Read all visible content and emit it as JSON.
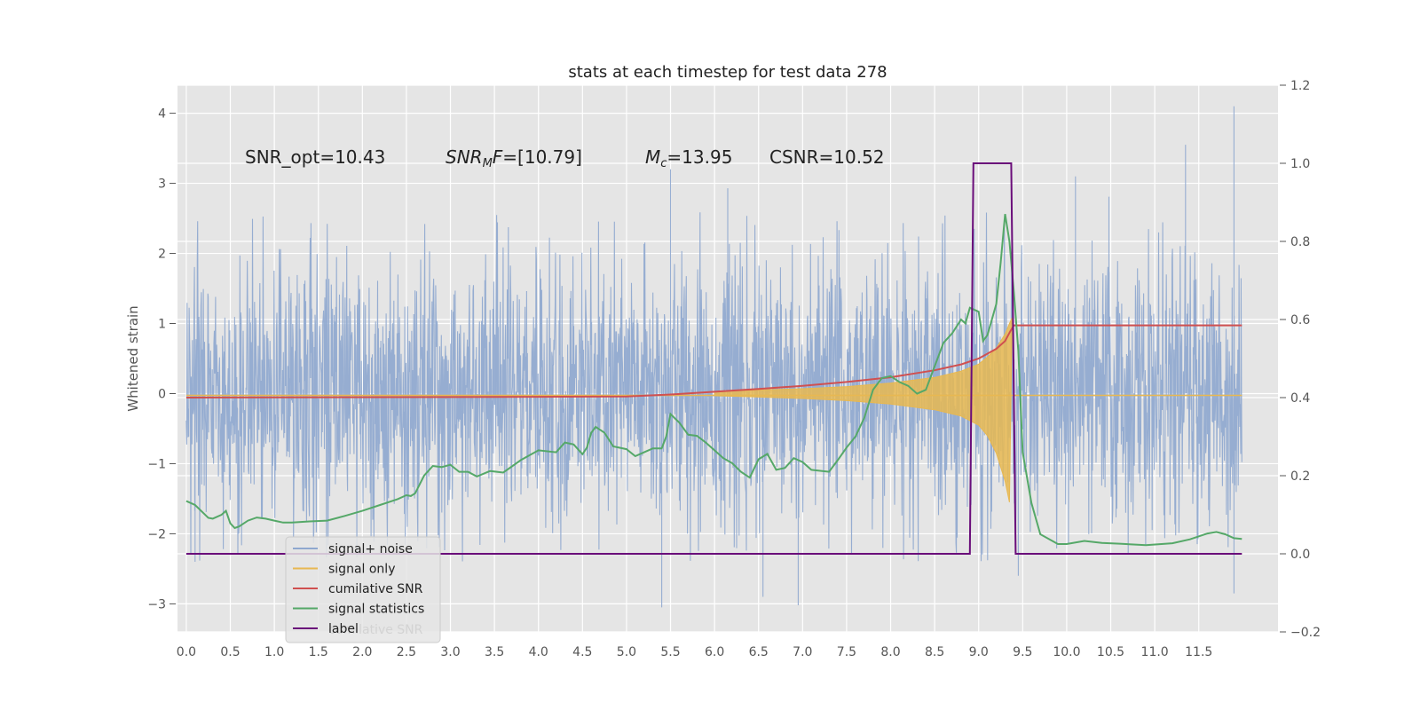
{
  "chart_data": {
    "type": "line",
    "title": "stats at each timestep for test data 278",
    "ylabel": "Whitened strain",
    "xlim": [
      -0.1,
      12.4
    ],
    "ylim": [
      -3.4,
      4.4
    ],
    "y2lim": [
      -0.2,
      1.2
    ],
    "x_ticks": [
      0.0,
      0.5,
      1.0,
      1.5,
      2.0,
      2.5,
      3.0,
      3.5,
      4.0,
      4.5,
      5.0,
      5.5,
      6.0,
      6.5,
      7.0,
      7.5,
      8.0,
      8.5,
      9.0,
      9.5,
      10.0,
      10.5,
      11.0,
      11.5
    ],
    "x_tick_labels": [
      "0.0",
      "0.5",
      "1.0",
      "1.5",
      "2.0",
      "2.5",
      "3.0",
      "3.5",
      "4.0",
      "4.5",
      "5.0",
      "5.5",
      "6.0",
      "6.5",
      "7.0",
      "7.5",
      "8.0",
      "8.5",
      "9.0",
      "9.5",
      "10.0",
      "10.5",
      "11.0",
      "11.5"
    ],
    "y_ticks": [
      4,
      3,
      2,
      1,
      0,
      -1,
      -2,
      -3
    ],
    "y_tick_labels": [
      "4",
      "3",
      "2",
      "1",
      "0",
      "−1",
      "−2",
      "−3"
    ],
    "y2_ticks": [
      1.2,
      1.0,
      0.8,
      0.6,
      0.4,
      0.2,
      0.0,
      -0.2
    ],
    "y2_tick_labels": [
      "1.2",
      "1.0",
      "0.8",
      "0.6",
      "0.4",
      "0.2",
      "0.0",
      "−0.2"
    ],
    "grid": true,
    "legend_position": "lower-left",
    "annotations": [
      "SNR_opt=10.43",
      "SNR_MF=[10.79]",
      "M_c=13.95",
      "CSNR=10.52"
    ],
    "series": [
      {
        "name": "signal+ noise",
        "axis": "left",
        "color": "#8fa8cf",
        "x_range": [
          0.0,
          11.99
        ],
        "note_values": "white noise, roughly within [-2.4, 2.6] with peaks up to 4.1 near x=11.95",
        "peaks": [
          [
            5.5,
            3.2
          ],
          [
            6.15,
            2.93
          ],
          [
            10.1,
            3.1
          ],
          [
            10.48,
            2.81
          ],
          [
            11.35,
            3.55
          ],
          [
            11.9,
            4.1
          ],
          [
            5.4,
            -3.05
          ],
          [
            6.95,
            -3.02
          ],
          [
            6.55,
            -2.9
          ],
          [
            11.9,
            -2.85
          ],
          [
            9.45,
            -2.6
          ],
          [
            0.1,
            -2.4
          ]
        ]
      },
      {
        "name": "signal only",
        "axis": "left",
        "color": "#e8b851",
        "points": [
          [
            6.0,
            0.03
          ],
          [
            6.5,
            0.05
          ],
          [
            7.0,
            0.07
          ],
          [
            7.5,
            0.1
          ],
          [
            8.0,
            0.15
          ],
          [
            8.5,
            0.23
          ],
          [
            8.8,
            0.32
          ],
          [
            9.0,
            0.42
          ],
          [
            9.1,
            0.52
          ],
          [
            9.2,
            0.65
          ],
          [
            9.3,
            0.85
          ],
          [
            9.35,
            1.0
          ],
          [
            9.38,
            1.08
          ]
        ],
        "points_negative": [
          [
            6.0,
            -0.03
          ],
          [
            6.5,
            -0.05
          ],
          [
            7.0,
            -0.07
          ],
          [
            7.5,
            -0.1
          ],
          [
            8.0,
            -0.15
          ],
          [
            8.5,
            -0.23
          ],
          [
            8.8,
            -0.32
          ],
          [
            9.0,
            -0.45
          ],
          [
            9.1,
            -0.6
          ],
          [
            9.2,
            -0.85
          ],
          [
            9.3,
            -1.25
          ],
          [
            9.35,
            -1.55
          ]
        ]
      },
      {
        "name": "cumilative SNR",
        "axis": "right",
        "color": "#d05050",
        "points": [
          [
            0.0,
            0.4
          ],
          [
            4.0,
            0.402
          ],
          [
            5.0,
            0.403
          ],
          [
            5.5,
            0.408
          ],
          [
            6.0,
            0.415
          ],
          [
            6.5,
            0.422
          ],
          [
            7.0,
            0.43
          ],
          [
            7.5,
            0.44
          ],
          [
            8.0,
            0.452
          ],
          [
            8.5,
            0.47
          ],
          [
            8.8,
            0.485
          ],
          [
            9.0,
            0.5
          ],
          [
            9.2,
            0.525
          ],
          [
            9.3,
            0.545
          ],
          [
            9.36,
            0.57
          ],
          [
            9.4,
            0.585
          ],
          [
            10.0,
            0.585
          ],
          [
            11.0,
            0.585
          ],
          [
            11.99,
            0.585
          ]
        ]
      },
      {
        "name": "signal statistics",
        "axis": "right",
        "color": "#55a868",
        "points": [
          [
            0.0,
            0.135
          ],
          [
            0.1,
            0.125
          ],
          [
            0.2,
            0.103
          ],
          [
            0.25,
            0.092
          ],
          [
            0.3,
            0.09
          ],
          [
            0.4,
            0.1
          ],
          [
            0.45,
            0.11
          ],
          [
            0.5,
            0.078
          ],
          [
            0.55,
            0.066
          ],
          [
            0.6,
            0.07
          ],
          [
            0.7,
            0.085
          ],
          [
            0.8,
            0.093
          ],
          [
            0.9,
            0.09
          ],
          [
            1.0,
            0.085
          ],
          [
            1.1,
            0.08
          ],
          [
            1.2,
            0.08
          ],
          [
            1.4,
            0.083
          ],
          [
            1.6,
            0.085
          ],
          [
            1.8,
            0.097
          ],
          [
            2.0,
            0.11
          ],
          [
            2.2,
            0.125
          ],
          [
            2.4,
            0.14
          ],
          [
            2.5,
            0.15
          ],
          [
            2.55,
            0.148
          ],
          [
            2.6,
            0.155
          ],
          [
            2.7,
            0.2
          ],
          [
            2.8,
            0.225
          ],
          [
            2.9,
            0.222
          ],
          [
            3.0,
            0.228
          ],
          [
            3.1,
            0.21
          ],
          [
            3.2,
            0.21
          ],
          [
            3.3,
            0.198
          ],
          [
            3.45,
            0.212
          ],
          [
            3.6,
            0.208
          ],
          [
            3.8,
            0.24
          ],
          [
            4.0,
            0.265
          ],
          [
            4.2,
            0.26
          ],
          [
            4.3,
            0.285
          ],
          [
            4.4,
            0.28
          ],
          [
            4.5,
            0.255
          ],
          [
            4.55,
            0.272
          ],
          [
            4.6,
            0.31
          ],
          [
            4.65,
            0.325
          ],
          [
            4.75,
            0.31
          ],
          [
            4.85,
            0.275
          ],
          [
            5.0,
            0.268
          ],
          [
            5.1,
            0.25
          ],
          [
            5.2,
            0.26
          ],
          [
            5.3,
            0.27
          ],
          [
            5.4,
            0.27
          ],
          [
            5.45,
            0.3
          ],
          [
            5.5,
            0.358
          ],
          [
            5.6,
            0.336
          ],
          [
            5.7,
            0.305
          ],
          [
            5.8,
            0.302
          ],
          [
            5.9,
            0.285
          ],
          [
            6.0,
            0.265
          ],
          [
            6.1,
            0.245
          ],
          [
            6.2,
            0.232
          ],
          [
            6.3,
            0.21
          ],
          [
            6.4,
            0.195
          ],
          [
            6.5,
            0.242
          ],
          [
            6.6,
            0.256
          ],
          [
            6.7,
            0.215
          ],
          [
            6.8,
            0.22
          ],
          [
            6.9,
            0.245
          ],
          [
            7.0,
            0.235
          ],
          [
            7.1,
            0.215
          ],
          [
            7.3,
            0.21
          ],
          [
            7.4,
            0.24
          ],
          [
            7.5,
            0.272
          ],
          [
            7.6,
            0.3
          ],
          [
            7.7,
            0.348
          ],
          [
            7.8,
            0.42
          ],
          [
            7.9,
            0.45
          ],
          [
            8.0,
            0.455
          ],
          [
            8.1,
            0.44
          ],
          [
            8.2,
            0.43
          ],
          [
            8.3,
            0.41
          ],
          [
            8.4,
            0.42
          ],
          [
            8.5,
            0.48
          ],
          [
            8.6,
            0.54
          ],
          [
            8.7,
            0.565
          ],
          [
            8.8,
            0.6
          ],
          [
            8.85,
            0.59
          ],
          [
            8.9,
            0.63
          ],
          [
            9.0,
            0.62
          ],
          [
            9.05,
            0.545
          ],
          [
            9.1,
            0.56
          ],
          [
            9.2,
            0.64
          ],
          [
            9.25,
            0.745
          ],
          [
            9.3,
            0.87
          ],
          [
            9.35,
            0.8
          ],
          [
            9.4,
            0.67
          ],
          [
            9.45,
            0.52
          ],
          [
            9.5,
            0.26
          ],
          [
            9.6,
            0.13
          ],
          [
            9.7,
            0.05
          ],
          [
            9.9,
            0.025
          ],
          [
            10.0,
            0.025
          ],
          [
            10.2,
            0.033
          ],
          [
            10.4,
            0.028
          ],
          [
            10.6,
            0.026
          ],
          [
            10.9,
            0.022
          ],
          [
            11.2,
            0.027
          ],
          [
            11.4,
            0.037
          ],
          [
            11.6,
            0.052
          ],
          [
            11.7,
            0.056
          ],
          [
            11.8,
            0.05
          ],
          [
            11.9,
            0.04
          ],
          [
            11.99,
            0.038
          ]
        ]
      },
      {
        "name": "label",
        "axis": "right",
        "color": "#6a0d7a",
        "points": [
          [
            0.0,
            0.0
          ],
          [
            8.9,
            0.0
          ],
          [
            8.94,
            1.0
          ],
          [
            9.37,
            1.0
          ],
          [
            9.42,
            0.0
          ],
          [
            11.99,
            0.0
          ]
        ]
      }
    ],
    "legend_ghost_text": "cumilative SNR"
  }
}
